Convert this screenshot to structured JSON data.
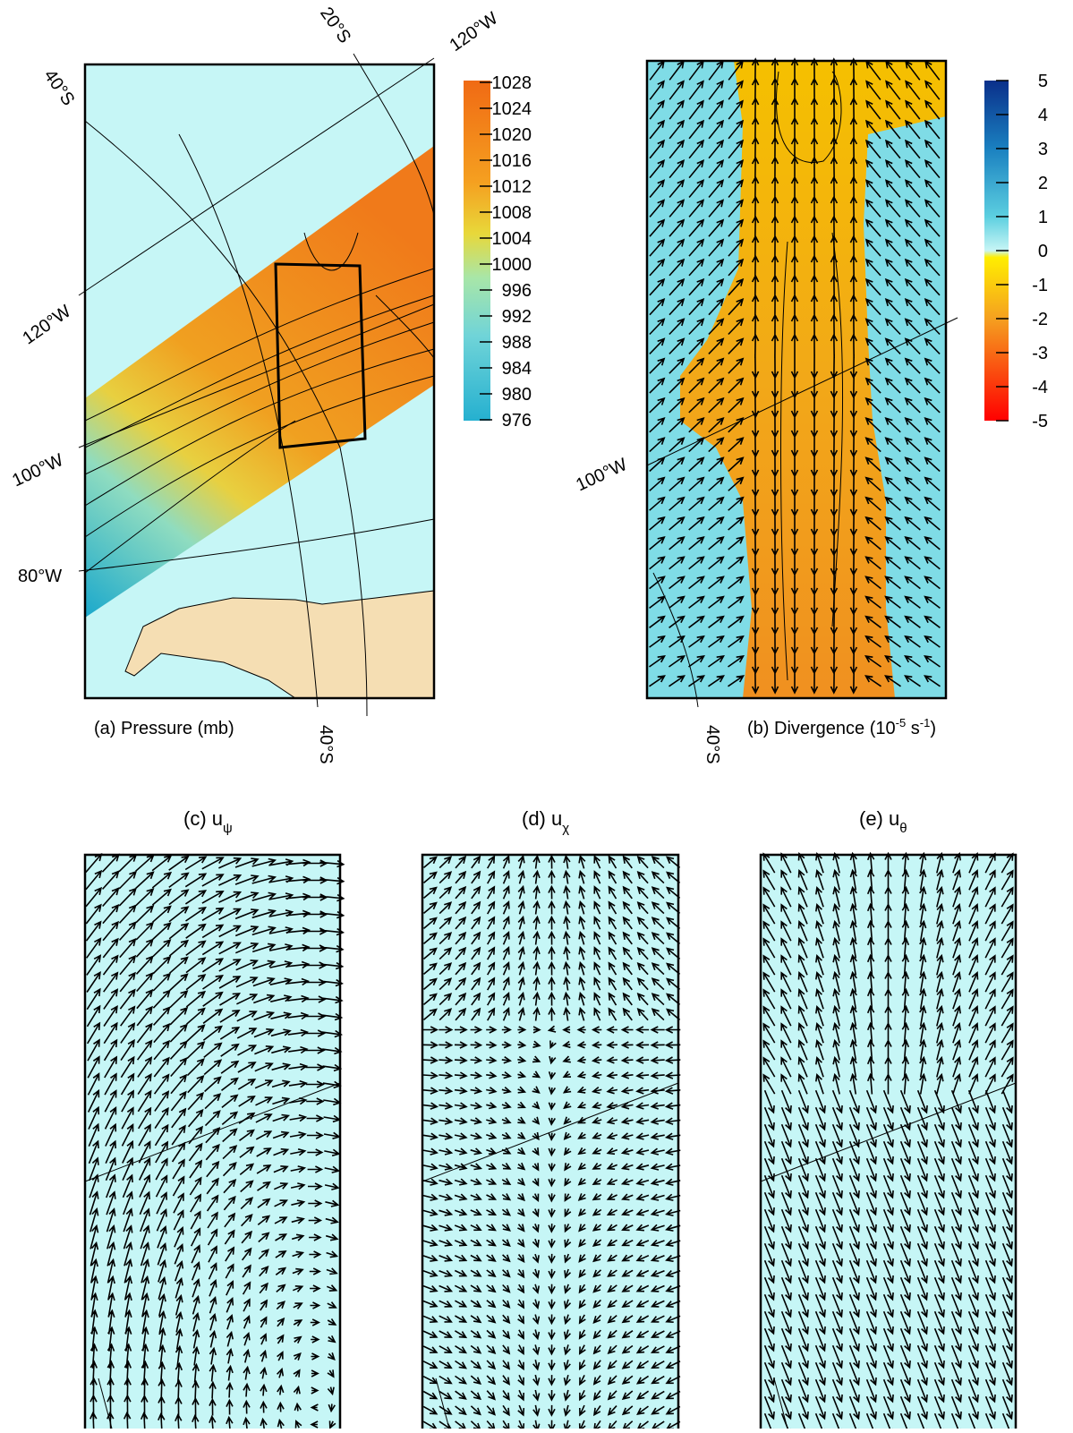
{
  "panel_a": {
    "caption": "(a)  Pressure (mb)",
    "grid_labels": [
      "20°S",
      "120°W",
      "40°S",
      "120°W",
      "100°W",
      "80°W",
      "40°S"
    ],
    "colorbar_ticks": [
      1028,
      1024,
      1020,
      1016,
      1012,
      1008,
      1004,
      1000,
      996,
      992,
      988,
      984,
      980,
      976
    ]
  },
  "panel_b": {
    "caption": "(b) Divergence (10",
    "caption_exp1": "-5",
    "caption_unit": " s",
    "caption_exp2": "-1",
    "caption_end": ")",
    "grid_labels": [
      "100°W",
      "40°S"
    ],
    "colorbar_ticks": [
      5,
      4,
      3,
      2,
      1,
      0,
      -1,
      -2,
      -3,
      -4,
      -5
    ]
  },
  "panel_c": {
    "title": "(c) u",
    "subscript": "ψ"
  },
  "panel_d": {
    "title": "(d) u",
    "subscript": "χ"
  },
  "panel_e": {
    "title": "(e) u",
    "subscript": "θ"
  }
}
